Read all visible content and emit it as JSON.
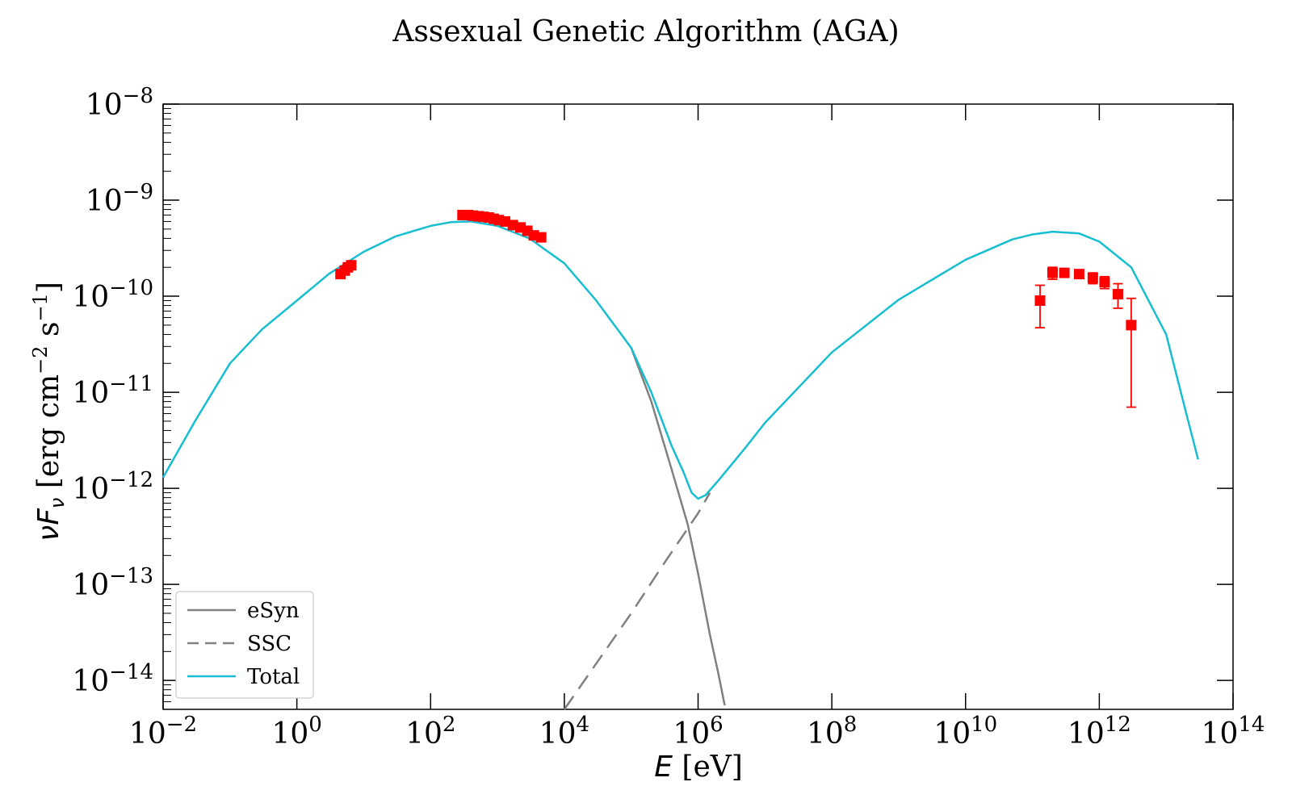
{
  "chart_data": {
    "type": "line",
    "title": "Assexual Genetic Algorithm (AGA)",
    "xlabel": {
      "symbol": "E",
      "unit": " [eV]"
    },
    "ylabel": {
      "symbol": "νF",
      "subscript": "ν",
      "unit": " [erg cm",
      "exp1": "−2",
      "mid": " s",
      "exp2": "−1",
      "close": "]"
    },
    "x_scale": "log",
    "y_scale": "log",
    "xlim": [
      0.01,
      100000000000000.0
    ],
    "ylim": [
      5e-15,
      1e-08
    ],
    "x_ticks": [
      {
        "value": 0.01,
        "base": "10",
        "exp": "−2"
      },
      {
        "value": 1,
        "base": "10",
        "exp": "0"
      },
      {
        "value": 100,
        "base": "10",
        "exp": "2"
      },
      {
        "value": 10000.0,
        "base": "10",
        "exp": "4"
      },
      {
        "value": 1000000.0,
        "base": "10",
        "exp": "6"
      },
      {
        "value": 100000000.0,
        "base": "10",
        "exp": "8"
      },
      {
        "value": 10000000000.0,
        "base": "10",
        "exp": "10"
      },
      {
        "value": 1000000000000.0,
        "base": "10",
        "exp": "12"
      },
      {
        "value": 100000000000000.0,
        "base": "10",
        "exp": "14"
      }
    ],
    "y_ticks": [
      {
        "value": 1e-14,
        "base": "10",
        "exp": "−14"
      },
      {
        "value": 1e-13,
        "base": "10",
        "exp": "−13"
      },
      {
        "value": 1e-12,
        "base": "10",
        "exp": "−12"
      },
      {
        "value": 1e-11,
        "base": "10",
        "exp": "−11"
      },
      {
        "value": 1e-10,
        "base": "10",
        "exp": "−10"
      },
      {
        "value": 1e-09,
        "base": "10",
        "exp": "−9"
      },
      {
        "value": 1e-08,
        "base": "10",
        "exp": "−8"
      }
    ],
    "grid": false,
    "legend_position": "lower-left",
    "series": [
      {
        "name": "eSyn",
        "style": "solid",
        "color": "#808080",
        "x": [
          100000.0,
          200000.0,
          400000.0,
          700000.0,
          1000000.0,
          1500000.0,
          2000000.0,
          2500000.0
        ],
        "y": [
          2.9e-11,
          8e-12,
          1.6e-12,
          4.2e-13,
          1.3e-13,
          3e-14,
          1.2e-14,
          5.5e-15
        ]
      },
      {
        "name": "SSC",
        "style": "dashed",
        "color": "#808080",
        "x": [
          10000.0,
          30000.0,
          100000.0,
          300000.0,
          1000000.0,
          1500000.0
        ],
        "y": [
          5e-15,
          1.5e-14,
          5e-14,
          1.6e-13,
          5.5e-13,
          9e-13
        ]
      },
      {
        "name": "Total",
        "style": "solid",
        "color": "#17becf",
        "x": [
          0.01,
          0.03,
          0.1,
          0.3,
          1,
          3,
          10,
          30,
          100,
          200,
          400,
          1000,
          3000,
          10000.0,
          30000.0,
          100000.0,
          200000.0,
          400000.0,
          600000.0,
          800000.0,
          1000000.0,
          1300000.0,
          2000000.0,
          5000000.0,
          10000000.0,
          100000000.0,
          1000000000.0,
          10000000000.0,
          50000000000.0,
          100000000000.0,
          200000000000.0,
          500000000000.0,
          1000000000000.0,
          3000000000000.0,
          10000000000000.0,
          20000000000000.0,
          30000000000000.0
        ],
        "y": [
          1.3e-12,
          5e-12,
          2e-11,
          4.5e-11,
          9e-11,
          1.7e-10,
          2.9e-10,
          4.2e-10,
          5.4e-10,
          5.9e-10,
          6e-10,
          5.4e-10,
          4e-10,
          2.2e-10,
          9e-11,
          2.9e-11,
          1e-11,
          2.8e-12,
          1.5e-12,
          9e-13,
          7.8e-13,
          8.5e-13,
          1.2e-12,
          2.6e-12,
          4.8e-12,
          2.6e-11,
          9.2e-11,
          2.4e-10,
          3.9e-10,
          4.4e-10,
          4.7e-10,
          4.5e-10,
          3.7e-10,
          2e-10,
          4e-11,
          6e-12,
          2e-12
        ]
      }
    ],
    "data_points": {
      "color": "#ff0000",
      "points": [
        {
          "x": 4.5,
          "y": 1.7e-10
        },
        {
          "x": 5.2,
          "y": 1.85e-10
        },
        {
          "x": 5.8,
          "y": 2e-10
        },
        {
          "x": 6.5,
          "y": 2.1e-10
        },
        {
          "x": 300,
          "y": 7e-10
        },
        {
          "x": 360,
          "y": 7e-10
        },
        {
          "x": 430,
          "y": 6.9e-10
        },
        {
          "x": 520,
          "y": 6.8e-10
        },
        {
          "x": 620,
          "y": 6.7e-10
        },
        {
          "x": 740,
          "y": 6.6e-10
        },
        {
          "x": 880,
          "y": 6.4e-10
        },
        {
          "x": 1050,
          "y": 6.2e-10
        },
        {
          "x": 1300,
          "y": 6e-10
        },
        {
          "x": 1700,
          "y": 5.5e-10
        },
        {
          "x": 2200,
          "y": 5.2e-10
        },
        {
          "x": 2800,
          "y": 4.8e-10
        },
        {
          "x": 3500,
          "y": 4.3e-10
        },
        {
          "x": 4500,
          "y": 4.1e-10
        },
        {
          "x": 130000000000.0,
          "y": 9e-11,
          "ylo": 4.7e-11,
          "yhi": 1.3e-10
        },
        {
          "x": 200000000000.0,
          "y": 1.75e-10,
          "ylo": 1.5e-10,
          "yhi": 2e-10
        },
        {
          "x": 300000000000.0,
          "y": 1.75e-10,
          "ylo": 1.6e-10,
          "yhi": 1.9e-10
        },
        {
          "x": 500000000000.0,
          "y": 1.7e-10,
          "ylo": 1.55e-10,
          "yhi": 1.85e-10
        },
        {
          "x": 800000000000.0,
          "y": 1.55e-10,
          "ylo": 1.35e-10,
          "yhi": 1.75e-10
        },
        {
          "x": 1200000000000.0,
          "y": 1.4e-10,
          "ylo": 1.2e-10,
          "yhi": 1.6e-10
        },
        {
          "x": 1900000000000.0,
          "y": 1.05e-10,
          "ylo": 7.5e-11,
          "yhi": 1.35e-10
        },
        {
          "x": 3000000000000.0,
          "y": 5e-11,
          "ylo": 7e-12,
          "yhi": 9.5e-11
        }
      ]
    }
  }
}
